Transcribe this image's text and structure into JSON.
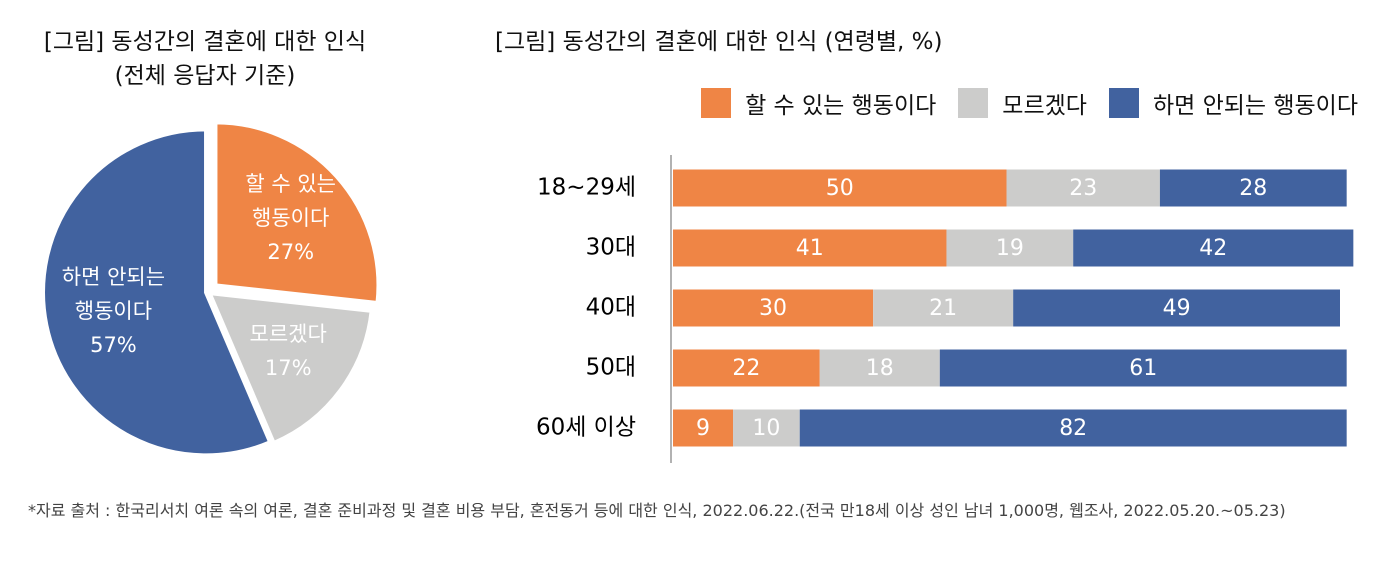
{
  "chart_data": [
    {
      "type": "pie",
      "title": "[그림] 동성간의 결혼에 대한 인식",
      "subtitle": "(전체 응답자 기준)",
      "categories": [
        "할 수 있는 행동이다",
        "모르겠다",
        "하면 안되는 행동이다"
      ],
      "values": [
        27,
        17,
        57
      ],
      "value_labels": [
        "27%",
        "17%",
        "57%"
      ],
      "colors": [
        "#ef8545",
        "#cccccb",
        "#41629f"
      ]
    },
    {
      "type": "stacked-barh",
      "title": "[그림] 동성간의 결혼에 대한 인식 (연령별, %)",
      "categories": [
        "18~29세",
        "30대",
        "40대",
        "50대",
        "60세 이상"
      ],
      "series": [
        {
          "name": "할 수 있는 행동이다",
          "color": "#ef8545",
          "values": [
            50,
            41,
            30,
            22,
            9
          ]
        },
        {
          "name": "모르겠다",
          "color": "#cccccb",
          "values": [
            23,
            19,
            21,
            18,
            10
          ]
        },
        {
          "name": "하면 안되는 행동이다",
          "color": "#41629f",
          "values": [
            28,
            42,
            49,
            61,
            82
          ]
        }
      ],
      "xlim": [
        0,
        100
      ],
      "legend": "top"
    }
  ],
  "footnote": "*자료 출처 : 한국리서치 여론 속의 여론, 결혼 준비과정 및 결혼 비용 부담, 혼전동거 등에 대한 인식, 2022.06.22.(전국 만18세 이상 성인 남녀 1,000명, 웹조사, 2022.05.20.~05.23)"
}
